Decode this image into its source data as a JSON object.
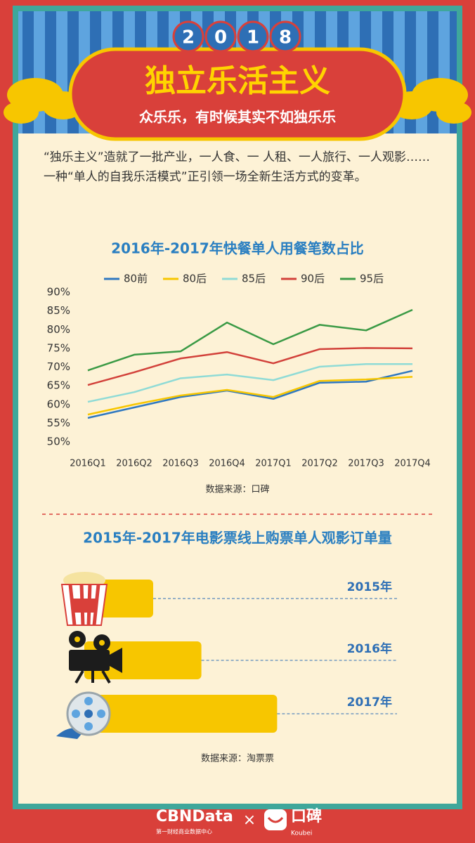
{
  "header": {
    "year_digits": [
      "2",
      "0",
      "1",
      "8"
    ],
    "title": "独立乐活主义",
    "subtitle": "众乐乐，有时候其实不如独乐乐"
  },
  "intro": "“独乐主义”造就了一批产业，一人食、一 人租、一人旅行、一人观影……一种“单人的自我乐活模式”正引领一场全新生活方式的变革。",
  "chart_data": [
    {
      "type": "line",
      "title": "2016年-2017年快餐单人用餐笔数占比",
      "legend": "top",
      "categories": [
        "2016Q1",
        "2016Q2",
        "2016Q3",
        "2016Q4",
        "2017Q1",
        "2017Q2",
        "2017Q3",
        "2017Q4"
      ],
      "series": [
        {
          "name": "80前",
          "color": "#2f78c0",
          "values": [
            56.4,
            59.2,
            62,
            63.7,
            61.5,
            65.8,
            66.1,
            69
          ]
        },
        {
          "name": "80后",
          "color": "#f7c600",
          "values": [
            57.3,
            60,
            62.4,
            63.9,
            62,
            66.3,
            66.7,
            67.4
          ]
        },
        {
          "name": "85后",
          "color": "#8fdbd6",
          "values": [
            60.7,
            63.3,
            67,
            68,
            66.5,
            70.1,
            70.8,
            70.8
          ]
        },
        {
          "name": "90后",
          "color": "#d2413a",
          "values": [
            65.2,
            68.6,
            72.3,
            74,
            71,
            74.8,
            75.1,
            75
          ]
        },
        {
          "name": "95后",
          "color": "#3a9a45",
          "values": [
            69.1,
            73.3,
            74.2,
            81.9,
            76.1,
            81.3,
            79.8,
            85.3
          ]
        }
      ],
      "ylim": [
        50,
        90
      ],
      "yticks": [
        {
          "value": 50,
          "label": "50%"
        },
        {
          "value": 55,
          "label": "55%"
        },
        {
          "value": 60,
          "label": "60%"
        },
        {
          "value": 65,
          "label": "65%"
        },
        {
          "value": 70,
          "label": "70%"
        },
        {
          "value": 75,
          "label": "75%"
        },
        {
          "value": 80,
          "label": "80%"
        },
        {
          "value": 85,
          "label": "85%"
        },
        {
          "value": 90,
          "label": "90%"
        }
      ],
      "source": "数据来源：口碑"
    },
    {
      "type": "hbar",
      "title": "2015年-2017年电影票线上购票单人观影订单量",
      "categories": [
        "2015年",
        "2016年",
        "2017年"
      ],
      "values": [
        100,
        170,
        280
      ],
      "color": "#f7c600",
      "xlim": [
        0,
        300
      ],
      "source": "数据来源：淘票票"
    }
  ],
  "footer": {
    "brand": "CBNData",
    "brand_sub": "第一财经商业数据中心",
    "cross": "×",
    "partner": "口碑",
    "partner_sub": "Koubei"
  }
}
